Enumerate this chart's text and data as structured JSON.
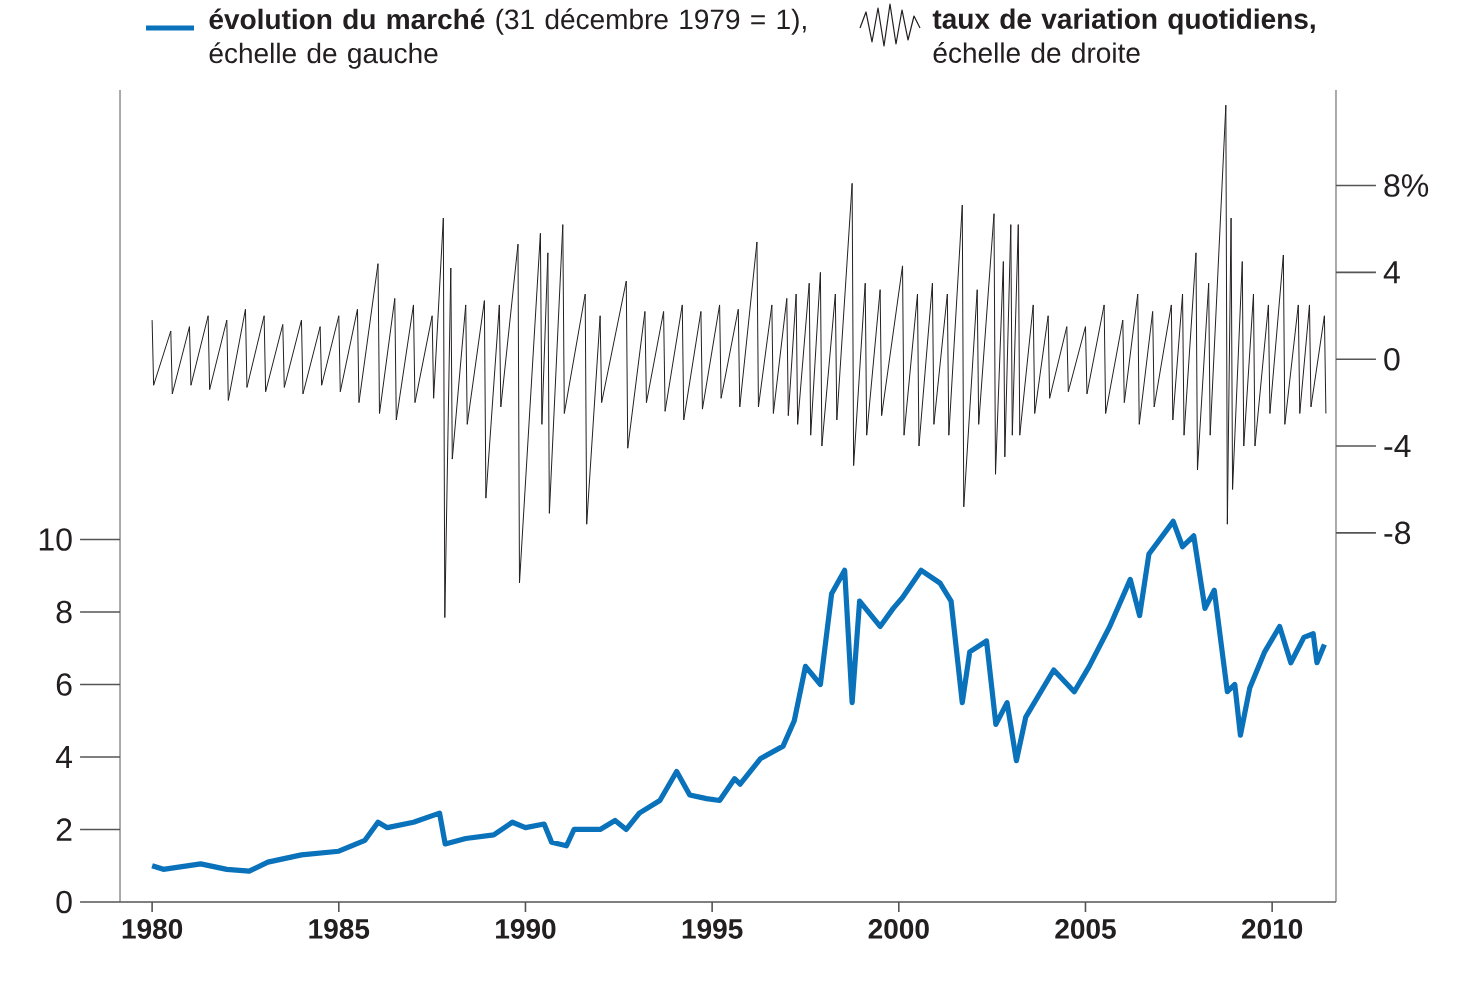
{
  "chart_data": {
    "type": "line",
    "legend": "top",
    "marker": "none",
    "line_style": "solid",
    "xlim": [
      1979.14,
      2011.71
    ],
    "xticks": [
      1980,
      1985,
      1990,
      1995,
      2000,
      2005,
      2010
    ],
    "ylim": [
      0,
      22.4
    ],
    "yticks": [
      0,
      2,
      4,
      6,
      8,
      10
    ],
    "y2lim": [
      -25,
      12.4
    ],
    "y2ticks": [
      {
        "value": 8,
        "label": "8%"
      },
      4,
      0,
      -4,
      -8
    ],
    "series": [
      {
        "name": "**évolution du marché** (31 décembre 1979 = 1), échelle de gauche",
        "color": "#0a72ba",
        "x": [
          1980.0,
          1980.3,
          1981.3,
          1982.0,
          1982.6,
          1983.1,
          1984.0,
          1985.0,
          1985.7,
          1986.05,
          1986.3,
          1987.0,
          1987.7,
          1987.85,
          1988.4,
          1989.15,
          1989.65,
          1990.0,
          1990.5,
          1990.7,
          1991.1,
          1991.3,
          1992.0,
          1992.4,
          1992.7,
          1993.05,
          1993.6,
          1994.05,
          1994.4,
          1994.85,
          1995.2,
          1995.6,
          1995.75,
          1996.3,
          1996.9,
          1997.2,
          1997.5,
          1997.9,
          1998.2,
          1998.55,
          1998.75,
          1998.95,
          1999.5,
          1999.85,
          2000.1,
          2000.6,
          2001.1,
          2001.4,
          2001.7,
          2001.9,
          2002.35,
          2002.6,
          2002.9,
          2003.15,
          2003.4,
          2004.15,
          2004.7,
          2005.1,
          2005.65,
          2006.2,
          2006.45,
          2006.7,
          2007.35,
          2007.6,
          2007.9,
          2008.2,
          2008.45,
          2008.8,
          2009.0,
          2009.15,
          2009.4,
          2009.8,
          2010.2,
          2010.5,
          2010.85,
          2011.1,
          2011.2,
          2011.4
        ],
        "values": [
          1.0,
          0.9,
          1.05,
          0.9,
          0.85,
          1.1,
          1.3,
          1.4,
          1.7,
          2.2,
          2.05,
          2.2,
          2.45,
          1.6,
          1.75,
          1.85,
          2.2,
          2.05,
          2.15,
          1.65,
          1.55,
          2.0,
          2.0,
          2.25,
          2.0,
          2.45,
          2.8,
          3.6,
          2.95,
          2.85,
          2.8,
          3.4,
          3.25,
          3.96,
          4.3,
          5.0,
          6.5,
          6.0,
          8.5,
          9.15,
          5.5,
          8.3,
          7.6,
          8.1,
          8.4,
          9.15,
          8.8,
          8.3,
          5.5,
          6.9,
          7.2,
          4.9,
          5.5,
          3.9,
          5.1,
          6.4,
          5.8,
          6.5,
          7.6,
          8.9,
          7.9,
          9.6,
          10.5,
          9.8,
          10.1,
          8.1,
          8.6,
          5.8,
          6.0,
          4.6,
          5.9,
          6.9,
          7.6,
          6.6,
          7.3,
          7.4,
          6.6,
          7.1
        ]
      },
      {
        "name": "**taux de variation quotidiens,** échelle de droite",
        "color": "#231f20",
        "axis": "y2",
        "x": [
          1980.0,
          1980.04,
          1980.5,
          1980.54,
          1981.0,
          1981.04,
          1981.5,
          1981.54,
          1982.0,
          1982.04,
          1982.5,
          1982.54,
          1983.0,
          1983.04,
          1983.5,
          1983.54,
          1984.0,
          1984.04,
          1984.5,
          1984.54,
          1985.0,
          1985.04,
          1985.5,
          1985.54,
          1986.05,
          1986.09,
          1986.5,
          1986.54,
          1987.0,
          1987.04,
          1987.5,
          1987.54,
          1987.8,
          1987.84,
          1988.0,
          1988.04,
          1988.4,
          1988.44,
          1988.9,
          1988.94,
          1989.3,
          1989.34,
          1989.8,
          1989.84,
          1990.4,
          1990.44,
          1990.6,
          1990.64,
          1991.0,
          1991.04,
          1991.6,
          1991.64,
          1992.0,
          1992.04,
          1992.7,
          1992.74,
          1993.2,
          1993.24,
          1993.7,
          1993.74,
          1994.2,
          1994.24,
          1994.7,
          1994.74,
          1995.2,
          1995.24,
          1995.7,
          1995.74,
          1996.2,
          1996.24,
          1996.6,
          1996.64,
          1997.0,
          1997.04,
          1997.25,
          1997.29,
          1997.6,
          1997.64,
          1997.9,
          1997.94,
          1998.3,
          1998.34,
          1998.75,
          1998.79,
          1999.1,
          1999.14,
          1999.5,
          1999.54,
          2000.1,
          2000.14,
          2000.5,
          2000.54,
          2000.9,
          2000.94,
          2001.3,
          2001.34,
          2001.7,
          2001.74,
          2002.1,
          2002.14,
          2002.55,
          2002.59,
          2002.8,
          2002.84,
          2003.0,
          2003.04,
          2003.2,
          2003.24,
          2003.6,
          2003.64,
          2004.0,
          2004.04,
          2004.5,
          2004.54,
          2005.0,
          2005.04,
          2005.5,
          2005.54,
          2006.0,
          2006.04,
          2006.4,
          2006.44,
          2006.8,
          2006.84,
          2007.3,
          2007.34,
          2007.6,
          2007.64,
          2007.96,
          2008.0,
          2008.3,
          2008.34,
          2008.76,
          2008.8,
          2008.9,
          2008.94,
          2009.2,
          2009.24,
          2009.5,
          2009.54,
          2009.9,
          2009.94,
          2010.3,
          2010.34,
          2010.7,
          2010.74,
          2011.0,
          2011.04,
          2011.4,
          2011.44
        ],
        "values": [
          1.8,
          -1.2,
          1.3,
          -1.6,
          1.5,
          -1.2,
          2.0,
          -1.4,
          1.8,
          -1.9,
          2.3,
          -1.3,
          2.0,
          -1.5,
          1.6,
          -1.3,
          1.8,
          -1.6,
          1.5,
          -1.2,
          2.0,
          -1.5,
          2.3,
          -2.0,
          4.4,
          -2.5,
          2.8,
          -2.8,
          2.5,
          -2.0,
          2.0,
          -1.8,
          6.5,
          -11.9,
          4.2,
          -4.6,
          2.5,
          -3.0,
          2.7,
          -6.4,
          2.5,
          -2.2,
          5.3,
          -10.3,
          5.8,
          -3.0,
          4.9,
          -7.1,
          6.2,
          -2.5,
          3.0,
          -7.6,
          2.0,
          -2.0,
          3.6,
          -4.1,
          2.2,
          -2.0,
          2.2,
          -2.4,
          2.5,
          -2.8,
          2.2,
          -2.3,
          2.5,
          -1.8,
          2.3,
          -2.2,
          5.4,
          -2.2,
          2.5,
          -2.5,
          2.8,
          -2.6,
          3.0,
          -3.0,
          3.5,
          -3.5,
          4.0,
          -4.0,
          3.0,
          -2.8,
          8.1,
          -4.9,
          3.5,
          -3.5,
          3.2,
          -2.6,
          4.3,
          -3.5,
          3.0,
          -4.0,
          3.5,
          -3.0,
          3.0,
          -3.5,
          7.1,
          -6.8,
          3.2,
          -3.0,
          6.7,
          -5.3,
          4.5,
          -4.5,
          6.2,
          -3.5,
          6.2,
          -3.5,
          2.5,
          -2.5,
          2.0,
          -1.8,
          1.5,
          -1.5,
          1.5,
          -1.6,
          2.5,
          -2.5,
          1.8,
          -2.0,
          3.0,
          -3.0,
          2.2,
          -2.2,
          2.5,
          -2.8,
          3.0,
          -3.5,
          4.9,
          -5.1,
          3.5,
          -3.5,
          11.7,
          -7.6,
          6.5,
          -6.0,
          4.5,
          -4.0,
          3.0,
          -4.0,
          2.5,
          -2.5,
          4.8,
          -3.0,
          2.5,
          -2.5,
          2.5,
          -2.2,
          2.0,
          -2.5
        ]
      }
    ]
  }
}
